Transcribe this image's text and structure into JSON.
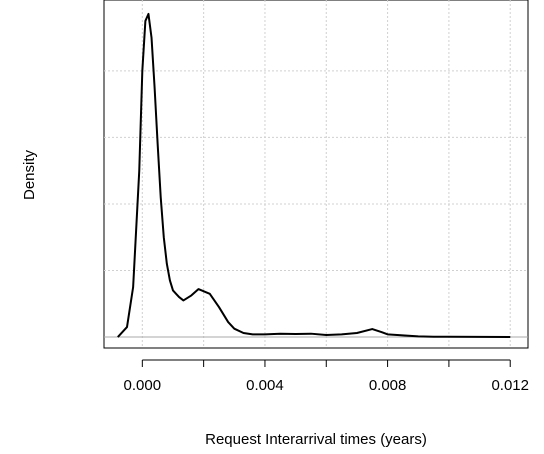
{
  "chart_data": {
    "type": "line",
    "xlabel": "Request Interarrival times (years)",
    "ylabel": "Density",
    "x": [
      -0.0008,
      -0.0005,
      -0.0003,
      -0.0001,
      0.0,
      0.0001,
      0.0002,
      0.0003,
      0.0004,
      0.0005,
      0.0006,
      0.0007,
      0.0008,
      0.0009,
      0.001,
      0.0011,
      0.0012,
      0.00134,
      0.0016,
      0.00183,
      0.0022,
      0.0025,
      0.0028,
      0.003,
      0.0033,
      0.0036,
      0.004,
      0.0045,
      0.005,
      0.0055,
      0.006,
      0.0065,
      0.007,
      0.0075,
      0.0078,
      0.008,
      0.0085,
      0.009,
      0.0095,
      0.01,
      0.011,
      0.012
    ],
    "series": [
      {
        "color": "#000000",
        "values": [
          0,
          30,
          150,
          500,
          800,
          950,
          971,
          900,
          750,
          580,
          420,
          300,
          220,
          170,
          140,
          130,
          120,
          110,
          125,
          144,
          130,
          90,
          45,
          25,
          12,
          8,
          8,
          10,
          9,
          10,
          6,
          8,
          12,
          24,
          15,
          8,
          5,
          2,
          1,
          1,
          0.5,
          0
        ]
      }
    ],
    "xlim": [
      -0.00125,
      0.01258
    ],
    "ylim": [
      -33,
      1013
    ],
    "xticks": [
      {
        "value": 0.0,
        "label": "0.000"
      },
      {
        "value": 0.004,
        "label": "0.004"
      },
      {
        "value": 0.008,
        "label": "0.008"
      },
      {
        "value": 0.012,
        "label": "0.012"
      }
    ],
    "xminorticks": [
      0.002,
      0.006,
      0.01
    ],
    "ygrid": [
      200,
      400,
      600,
      800
    ],
    "grid": true
  }
}
